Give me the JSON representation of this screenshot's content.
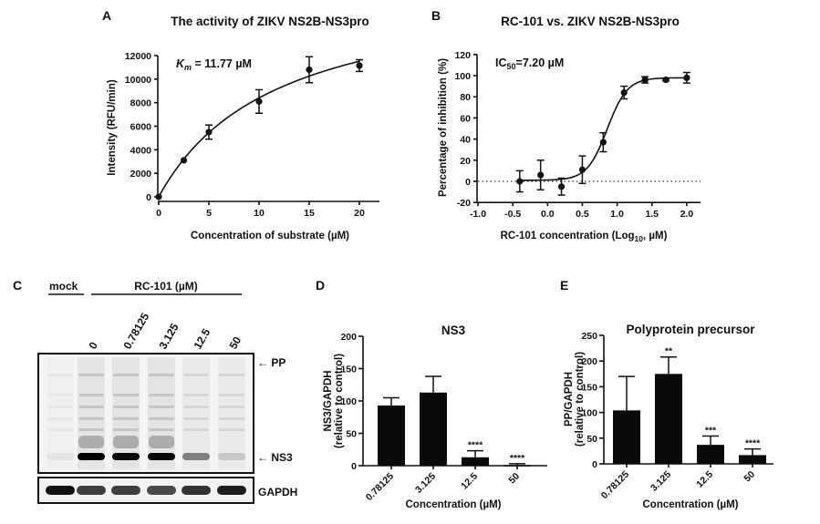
{
  "panels": {
    "A": "A",
    "B": "B",
    "C": "C",
    "D": "D",
    "E": "E"
  },
  "chart_data": [
    {
      "id": "A",
      "type": "scatter",
      "title": "The activity of ZIKV NS2B-NS3pro",
      "xlabel": "Concentration of substrate (µM)",
      "ylabel": "Intensity (RFU/min)",
      "annotation": {
        "symbol": "K",
        "sub": "m",
        "text": " = 11.77 µM"
      },
      "xlim": [
        0,
        22
      ],
      "ylim": [
        0,
        12000
      ],
      "xticks": [
        "0",
        "5",
        "10",
        "15",
        "20"
      ],
      "yticks": [
        "0",
        "2000",
        "4000",
        "6000",
        "8000",
        "10000",
        "12000"
      ],
      "fit": "Michaelis-Menten",
      "points": [
        {
          "x": 0,
          "y": 0,
          "err": 0
        },
        {
          "x": 2.5,
          "y": 3100,
          "err": 0
        },
        {
          "x": 5,
          "y": 5500,
          "err": 600
        },
        {
          "x": 10,
          "y": 8100,
          "err": 1000
        },
        {
          "x": 15,
          "y": 10800,
          "err": 1100
        },
        {
          "x": 20,
          "y": 11150,
          "err": 500
        }
      ]
    },
    {
      "id": "B",
      "type": "scatter",
      "title": "RC-101 vs. ZIKV NS2B-NS3pro",
      "xlabel": {
        "pre": "RC-101 concentration (Log",
        "sub": "10",
        "post": ", µM)"
      },
      "ylabel": "Percentage of inhibition (%)",
      "annotation": {
        "symbol": "IC",
        "sub": "50",
        "text": "=7.20 µM"
      },
      "xlim": [
        -1.0,
        2.2
      ],
      "ylim": [
        -20,
        120
      ],
      "xticks": [
        "-1.0",
        "-0.5",
        "0.0",
        "0.5",
        "1.0",
        "1.5",
        "2.0"
      ],
      "yticks": [
        "-20",
        "0",
        "20",
        "40",
        "60",
        "80",
        "100",
        "120"
      ],
      "fit": "sigmoidal dose-response",
      "reference_line": {
        "y": 0,
        "style": "dotted"
      },
      "points": [
        {
          "x": -0.4,
          "y": 0,
          "err": 10
        },
        {
          "x": -0.1,
          "y": 6,
          "err": 14
        },
        {
          "x": 0.2,
          "y": -5,
          "err": 8
        },
        {
          "x": 0.5,
          "y": 11,
          "err": 13
        },
        {
          "x": 0.8,
          "y": 37,
          "err": 9
        },
        {
          "x": 1.1,
          "y": 84,
          "err": 6
        },
        {
          "x": 1.4,
          "y": 96,
          "err": 3
        },
        {
          "x": 1.7,
          "y": 96,
          "err": 1
        },
        {
          "x": 2.0,
          "y": 98,
          "err": 5
        }
      ]
    },
    {
      "id": "D",
      "type": "bar",
      "title": "NS3",
      "xlabel": "Concentration (µM)",
      "ylabel": [
        "NS3/GAPDH",
        "(relative to control)"
      ],
      "ylim": [
        0,
        200
      ],
      "yticks": [
        "0",
        "50",
        "100",
        "150",
        "200"
      ],
      "categories": [
        "0.78125",
        "3.125",
        "12.5",
        "50"
      ],
      "values": [
        93,
        113,
        13,
        1
      ],
      "errors": [
        12,
        25,
        10,
        2
      ],
      "significance": [
        "",
        "",
        "****",
        "****"
      ]
    },
    {
      "id": "E",
      "type": "bar",
      "title": "Polyprotein precursor",
      "xlabel": "Concentration (µM)",
      "ylabel": [
        "PP/GAPDH",
        "(relative to control)"
      ],
      "ylim": [
        0,
        250
      ],
      "yticks": [
        "0",
        "50",
        "100",
        "150",
        "200",
        "250"
      ],
      "categories": [
        "0.78125",
        "3.125",
        "12.5",
        "50"
      ],
      "values": [
        104,
        175,
        37,
        17
      ],
      "errors": [
        66,
        33,
        17,
        12
      ],
      "significance": [
        "",
        "**",
        "***",
        "****"
      ]
    }
  ],
  "blot": {
    "mock_label": "mock",
    "treatment_label": "RC-101 (µM)",
    "lanes": [
      "0",
      "0.78125",
      "3.125",
      "12.5",
      "50"
    ],
    "markers": {
      "pp": "PP",
      "ns3": "NS3",
      "gapdh": "GAPDH"
    },
    "ns3_intensity": [
      0.05,
      1.0,
      0.95,
      0.97,
      0.45,
      0.15
    ],
    "gapdh_intensity": [
      1.0,
      0.8,
      0.8,
      0.75,
      0.85,
      0.95
    ]
  }
}
